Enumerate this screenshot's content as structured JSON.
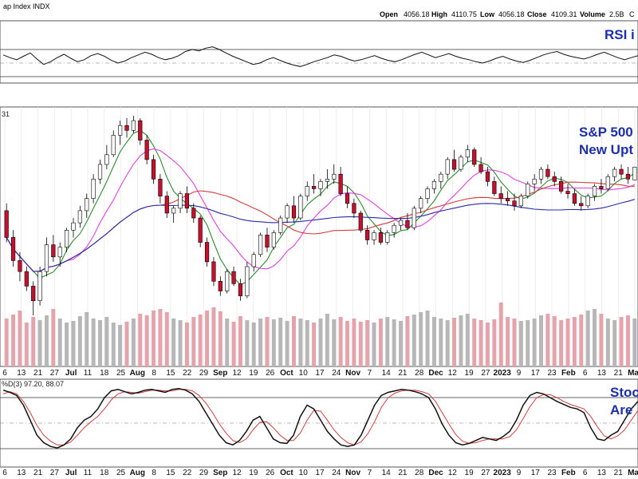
{
  "header": {
    "title": "ap Index INDX",
    "open_label": "Open",
    "open": "4056.18",
    "high_label": "High",
    "high": "4110.75",
    "low_label": "Low",
    "low": "4056.18",
    "close_label": "Close",
    "close": "4109.31",
    "volume_label": "Volume",
    "volume": "2.5B",
    "trail": "C"
  },
  "panels": {
    "price_value_label": "31",
    "stoch_label": "%D(3) 97.20, 88.07"
  },
  "annotations": {
    "rsi": "RSI i",
    "sp_line1": "S&P 500",
    "sp_line2": "New Upt",
    "stoch_line1": "Stoc",
    "stoch_line2": "Are"
  },
  "colors": {
    "up": "#ffffff",
    "down": "#c8102e",
    "vol_down": "#e5a4ac",
    "vol_up": "#b7b7b7",
    "ma_fast": "#2e8b2e",
    "ma_mid": "#e040e0",
    "ma_slow": "#d23c3c",
    "ma_long": "#2a2aa8",
    "annot": "#1d2fa8"
  },
  "x_axis_labels": [
    {
      "t": "6",
      "bold": false
    },
    {
      "t": "13",
      "bold": false
    },
    {
      "t": "21",
      "bold": false
    },
    {
      "t": "27",
      "bold": false
    },
    {
      "t": "Jul",
      "bold": true
    },
    {
      "t": "11",
      "bold": false
    },
    {
      "t": "18",
      "bold": false
    },
    {
      "t": "25",
      "bold": false
    },
    {
      "t": "Aug",
      "bold": true
    },
    {
      "t": "8",
      "bold": false
    },
    {
      "t": "15",
      "bold": false
    },
    {
      "t": "22",
      "bold": false
    },
    {
      "t": "29",
      "bold": false
    },
    {
      "t": "Sep",
      "bold": true
    },
    {
      "t": "12",
      "bold": false
    },
    {
      "t": "19",
      "bold": false
    },
    {
      "t": "26",
      "bold": false
    },
    {
      "t": "Oct",
      "bold": true
    },
    {
      "t": "10",
      "bold": false
    },
    {
      "t": "17",
      "bold": false
    },
    {
      "t": "24",
      "bold": false
    },
    {
      "t": "Nov",
      "bold": true
    },
    {
      "t": "7",
      "bold": false
    },
    {
      "t": "14",
      "bold": false
    },
    {
      "t": "21",
      "bold": false
    },
    {
      "t": "28",
      "bold": false
    },
    {
      "t": "Dec",
      "bold": true
    },
    {
      "t": "12",
      "bold": false
    },
    {
      "t": "19",
      "bold": false
    },
    {
      "t": "27",
      "bold": false
    },
    {
      "t": "2023",
      "bold": true
    },
    {
      "t": "9",
      "bold": false
    },
    {
      "t": "17",
      "bold": false
    },
    {
      "t": "23",
      "bold": false
    },
    {
      "t": "Feb",
      "bold": true
    },
    {
      "t": "6",
      "bold": false
    },
    {
      "t": "13",
      "bold": false
    },
    {
      "t": "21",
      "bold": false
    },
    {
      "t": "Mar",
      "bold": true
    }
  ],
  "chart_data": {
    "type": "line",
    "series": [
      {
        "values": [
          62,
          58,
          55,
          60,
          65,
          56,
          48,
          52,
          58,
          63,
          57,
          52,
          55,
          61,
          64,
          60,
          54,
          50,
          53,
          58,
          62,
          66,
          63,
          58,
          55,
          57,
          61,
          67,
          70,
          68,
          72,
          74,
          70,
          65,
          60,
          56,
          52,
          48,
          50,
          55,
          58,
          54,
          50,
          47,
          45,
          48,
          52,
          55,
          58,
          62,
          60,
          56,
          53,
          55,
          58,
          61,
          57,
          54,
          52,
          55,
          59,
          63,
          66,
          62,
          58,
          61,
          64,
          60,
          57,
          55,
          52,
          50,
          53,
          57,
          60,
          56,
          53,
          51,
          54,
          58,
          62,
          65,
          67,
          63,
          60,
          58,
          56,
          59,
          63,
          66,
          62,
          58,
          55,
          58,
          61
        ]
      },
      {
        "values": [
          95,
          92,
          88,
          75,
          55,
          35,
          25,
          20,
          18,
          22,
          30,
          45,
          55,
          60,
          70,
          85,
          94,
          96,
          93,
          90,
          92,
          95,
          96,
          94,
          92,
          96,
          97,
          95,
          90,
          80,
          65,
          50,
          35,
          25,
          22,
          28,
          40,
          55,
          60,
          45,
          30,
          25,
          24,
          35,
          60,
          75,
          70,
          55,
          40,
          30,
          22,
          20,
          22,
          35,
          55,
          75,
          88,
          92,
          94,
          96,
          95,
          93,
          90,
          85,
          70,
          50,
          35,
          25,
          22,
          24,
          28,
          32,
          30,
          28,
          33,
          40,
          55,
          75,
          88,
          92,
          90,
          85,
          80,
          76,
          72,
          70,
          65,
          45,
          30,
          28,
          35,
          40,
          55,
          70,
          80
        ]
      },
      {
        "values": [
          90,
          93,
          90,
          80,
          65,
          48,
          35,
          27,
          22,
          22,
          26,
          35,
          45,
          53,
          60,
          70,
          82,
          90,
          93,
          92,
          91,
          93,
          95,
          95,
          94,
          94,
          96,
          96,
          94,
          88,
          78,
          65,
          50,
          38,
          28,
          25,
          30,
          42,
          52,
          53,
          45,
          35,
          28,
          28,
          38,
          55,
          68,
          67,
          55,
          42,
          32,
          25,
          22,
          26,
          37,
          53,
          72,
          85,
          91,
          94,
          95,
          95,
          93,
          90,
          80,
          65,
          50,
          36,
          27,
          24,
          25,
          28,
          30,
          30,
          30,
          33,
          42,
          57,
          73,
          85,
          89,
          89,
          85,
          80,
          76,
          73,
          70,
          60,
          46,
          34,
          30,
          34,
          42,
          55,
          68
        ]
      }
    ],
    "ohlc": [
      [
        3930,
        3960,
        3800,
        3820
      ],
      [
        3820,
        3850,
        3700,
        3725
      ],
      [
        3725,
        3760,
        3640,
        3680
      ],
      [
        3680,
        3700,
        3600,
        3620
      ],
      [
        3620,
        3640,
        3500,
        3560
      ],
      [
        3560,
        3700,
        3540,
        3680
      ],
      [
        3680,
        3820,
        3660,
        3790
      ],
      [
        3790,
        3830,
        3720,
        3740
      ],
      [
        3740,
        3800,
        3700,
        3780
      ],
      [
        3780,
        3860,
        3760,
        3850
      ],
      [
        3850,
        3900,
        3820,
        3880
      ],
      [
        3880,
        3950,
        3860,
        3930
      ],
      [
        3930,
        4000,
        3900,
        3980
      ],
      [
        3980,
        4080,
        3960,
        4060
      ],
      [
        4060,
        4140,
        4040,
        4120
      ],
      [
        4120,
        4200,
        4100,
        4160
      ],
      [
        4160,
        4260,
        4150,
        4240
      ],
      [
        4240,
        4300,
        4200,
        4280
      ],
      [
        4280,
        4310,
        4230,
        4260
      ],
      [
        4260,
        4320,
        4250,
        4300
      ],
      [
        4300,
        4310,
        4200,
        4220
      ],
      [
        4220,
        4240,
        4120,
        4140
      ],
      [
        4140,
        4160,
        4040,
        4060
      ],
      [
        4060,
        4080,
        3960,
        3990
      ],
      [
        3990,
        4010,
        3900,
        3920
      ],
      [
        3920,
        3950,
        3880,
        3940
      ],
      [
        3940,
        4010,
        3920,
        4000
      ],
      [
        4000,
        4030,
        3920,
        3940
      ],
      [
        3940,
        3960,
        3880,
        3900
      ],
      [
        3900,
        3910,
        3780,
        3800
      ],
      [
        3800,
        3820,
        3700,
        3720
      ],
      [
        3720,
        3740,
        3620,
        3640
      ],
      [
        3640,
        3660,
        3580,
        3600
      ],
      [
        3600,
        3690,
        3590,
        3680
      ],
      [
        3680,
        3700,
        3620,
        3630
      ],
      [
        3630,
        3650,
        3560,
        3580
      ],
      [
        3580,
        3720,
        3570,
        3700
      ],
      [
        3700,
        3760,
        3680,
        3750
      ],
      [
        3750,
        3840,
        3740,
        3830
      ],
      [
        3830,
        3860,
        3760,
        3780
      ],
      [
        3780,
        3850,
        3770,
        3840
      ],
      [
        3840,
        3910,
        3830,
        3900
      ],
      [
        3900,
        3960,
        3880,
        3950
      ],
      [
        3950,
        3990,
        3880,
        3900
      ],
      [
        3900,
        4000,
        3890,
        3990
      ],
      [
        3990,
        4050,
        3970,
        4030
      ],
      [
        4030,
        4080,
        4000,
        4020
      ],
      [
        4020,
        4060,
        3990,
        4050
      ],
      [
        4050,
        4100,
        4020,
        4060
      ],
      [
        4060,
        4120,
        4040,
        4080
      ],
      [
        4080,
        4110,
        3990,
        4000
      ],
      [
        4000,
        4030,
        3940,
        3960
      ],
      [
        3960,
        3980,
        3900,
        3920
      ],
      [
        3920,
        3930,
        3840,
        3850
      ],
      [
        3850,
        3870,
        3790,
        3810
      ],
      [
        3810,
        3850,
        3790,
        3840
      ],
      [
        3840,
        3860,
        3790,
        3800
      ],
      [
        3800,
        3850,
        3790,
        3840
      ],
      [
        3840,
        3880,
        3820,
        3870
      ],
      [
        3870,
        3900,
        3850,
        3890
      ],
      [
        3890,
        3920,
        3850,
        3860
      ],
      [
        3860,
        3950,
        3850,
        3940
      ],
      [
        3940,
        3990,
        3920,
        3980
      ],
      [
        3980,
        4030,
        3960,
        4020
      ],
      [
        4020,
        4060,
        4000,
        4050
      ],
      [
        4050,
        4090,
        4020,
        4080
      ],
      [
        4080,
        4150,
        4060,
        4140
      ],
      [
        4140,
        4180,
        4090,
        4100
      ],
      [
        4100,
        4160,
        4090,
        4150
      ],
      [
        4150,
        4200,
        4130,
        4180
      ],
      [
        4180,
        4190,
        4110,
        4120
      ],
      [
        4120,
        4150,
        4080,
        4090
      ],
      [
        4090,
        4110,
        4030,
        4050
      ],
      [
        4050,
        4070,
        3990,
        4000
      ],
      [
        4000,
        4030,
        3960,
        3980
      ],
      [
        3980,
        4010,
        3950,
        3970
      ],
      [
        3970,
        4000,
        3930,
        3950
      ],
      [
        3950,
        4000,
        3940,
        3990
      ],
      [
        3990,
        4050,
        3980,
        4040
      ],
      [
        4040,
        4080,
        4010,
        4060
      ],
      [
        4060,
        4110,
        4040,
        4100
      ],
      [
        4100,
        4120,
        4060,
        4070
      ],
      [
        4070,
        4090,
        4030,
        4050
      ],
      [
        4050,
        4070,
        4000,
        4010
      ],
      [
        4010,
        4040,
        3980,
        4000
      ],
      [
        4000,
        4020,
        3950,
        3960
      ],
      [
        3960,
        3990,
        3930,
        3950
      ],
      [
        3950,
        4000,
        3940,
        3990
      ],
      [
        3990,
        4040,
        3970,
        4030
      ],
      [
        4030,
        4060,
        4000,
        4020
      ],
      [
        4020,
        4080,
        4010,
        4070
      ],
      [
        4070,
        4110,
        4050,
        4100
      ],
      [
        4100,
        4120,
        4060,
        4080
      ],
      [
        4080,
        4110,
        4040,
        4060
      ],
      [
        4056.18,
        4110.75,
        4056.18,
        4109.31
      ]
    ],
    "volume": [
      60,
      65,
      70,
      55,
      62,
      58,
      64,
      72,
      60,
      55,
      57,
      63,
      68,
      60,
      58,
      62,
      55,
      52,
      56,
      60,
      66,
      64,
      70,
      72,
      68,
      60,
      58,
      55,
      62,
      65,
      70,
      74,
      69,
      60,
      56,
      63,
      58,
      55,
      60,
      62,
      59,
      61,
      57,
      63,
      60,
      58,
      55,
      60,
      66,
      59,
      62,
      57,
      60,
      56,
      58,
      55,
      60,
      62,
      59,
      57,
      63,
      65,
      68,
      70,
      62,
      60,
      58,
      61,
      64,
      66,
      60,
      58,
      55,
      59,
      80,
      62,
      60,
      57,
      58,
      60,
      64,
      66,
      63,
      58,
      60,
      62,
      65,
      70,
      72,
      66,
      60,
      58,
      62,
      64,
      60
    ]
  }
}
